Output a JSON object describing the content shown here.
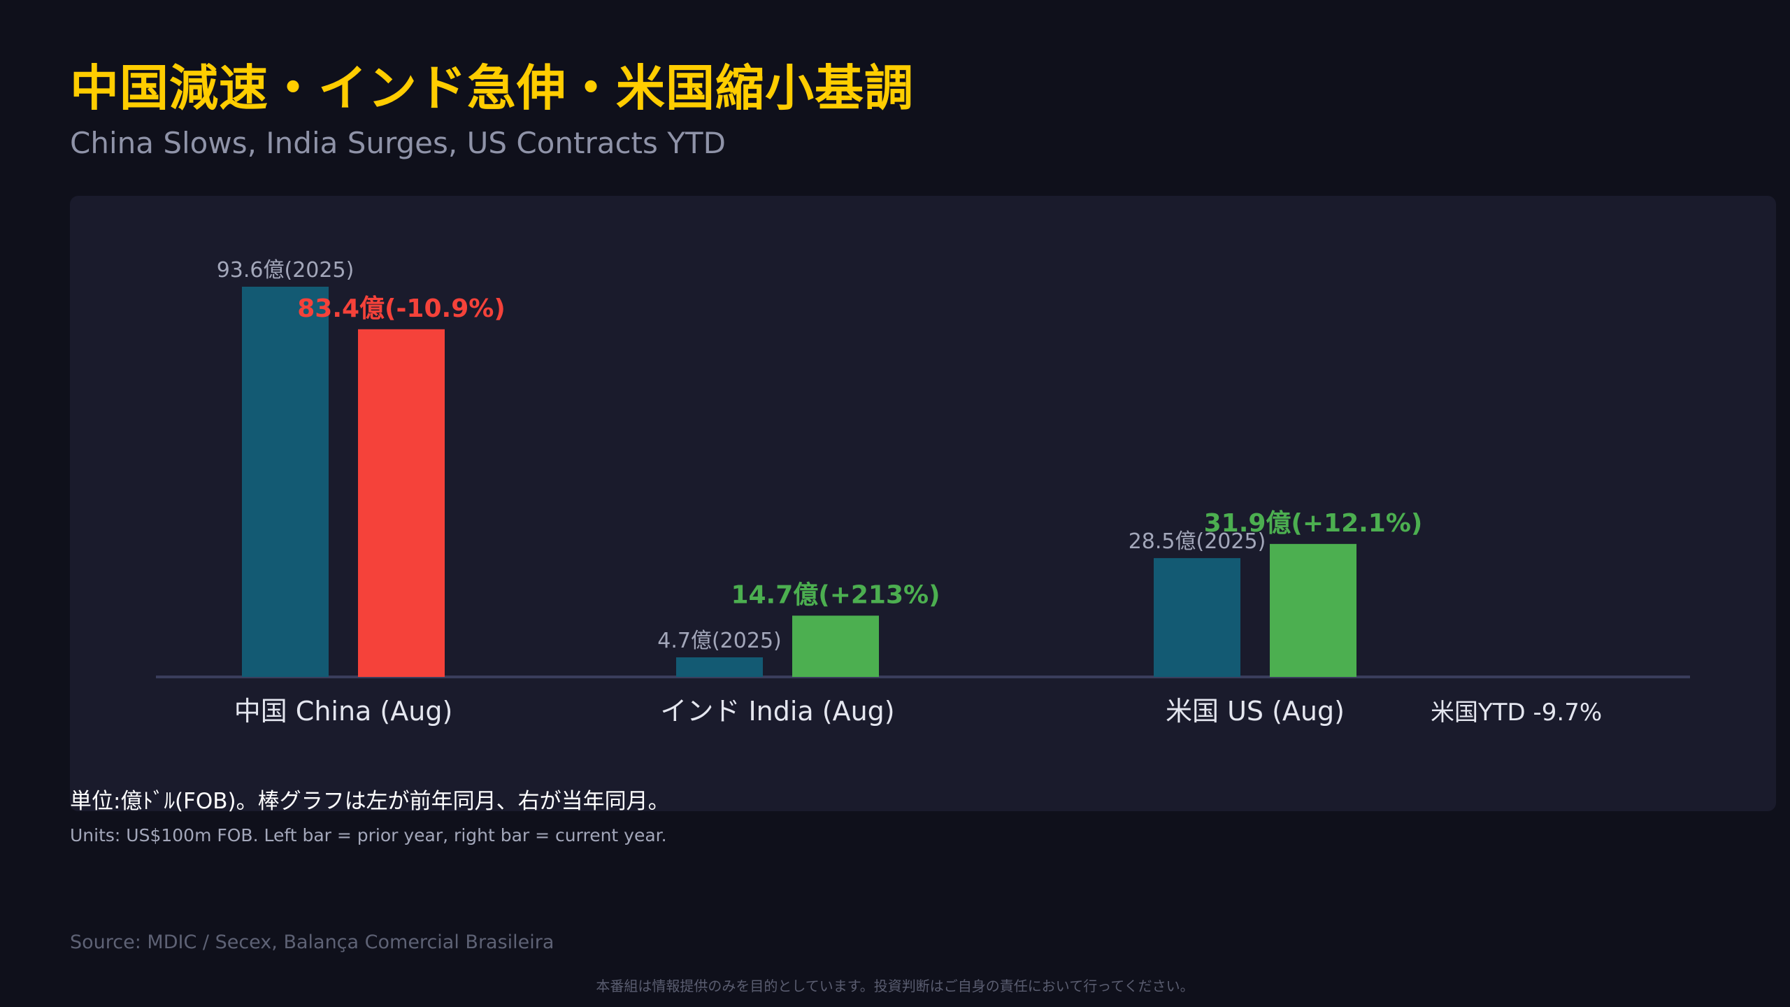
{
  "header": {
    "title": "中国減速・インド急伸・米国縮小基調",
    "subtitle": "China Slows, India Surges, US Contracts YTD"
  },
  "chart_data": {
    "type": "bar",
    "title": "中国減速・インド急伸・米国縮小基調",
    "subtitle": "China Slows, India Surges, US Contracts YTD",
    "categories": [
      "中国 China (Aug)",
      "インド India (Aug)",
      "米国 US (Aug)"
    ],
    "series": [
      {
        "role": "prior",
        "color": "#135a73",
        "values": [
          93.6,
          4.7,
          28.5
        ],
        "labels": [
          "93.6億(2025)",
          "4.7億(2025)",
          "28.5億(2025)"
        ]
      },
      {
        "role": "current",
        "values": [
          83.4,
          14.7,
          31.9
        ],
        "labels": [
          "83.4億(-10.9%)",
          "14.7億(+213%)",
          "31.9億(+12.1%)"
        ],
        "colors": [
          "#f5423a",
          "#4caf50",
          "#4caf50"
        ]
      }
    ],
    "annotation": "米国YTD -9.7%",
    "ylim": [
      0,
      100
    ],
    "xlabel": "",
    "ylabel": "",
    "grid": false,
    "legend": "none"
  },
  "colors": {
    "background": "#0f101b",
    "panel": "#1a1b2c",
    "title": "#ffcd00",
    "prior_bar": "#135a73",
    "decrease": "#f5423a",
    "increase": "#4caf50",
    "axis": "#3a3d5c"
  },
  "notes": {
    "jp": "単位:億ﾄﾞﾙ(FOB)。棒グラフは左が前年同月、右が当年同月。",
    "en": "Units: US$100m FOB. Left bar = prior year, right bar = current year."
  },
  "source": "Source: MDIC / Secex, Balança Comercial Brasileira",
  "disclaimer": "本番組は情報提供のみを目的としています。投資判断はご自身の責任において行ってください。"
}
